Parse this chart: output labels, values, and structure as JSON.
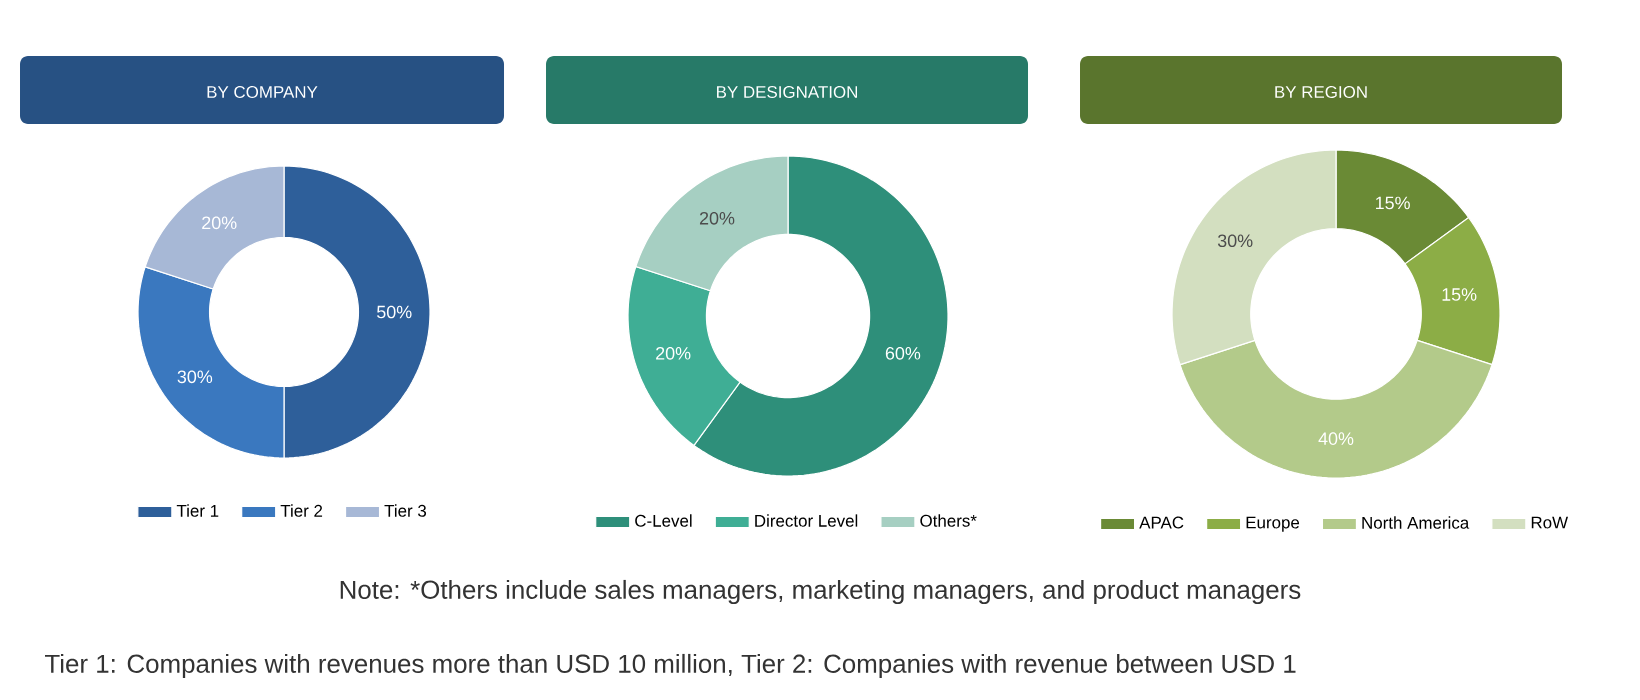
{
  "chart_data": [
    {
      "type": "donut",
      "title": "BY COMPANY",
      "categories": [
        "Tier 1",
        "Tier 2",
        "Tier 3"
      ],
      "values": [
        50,
        30,
        20
      ],
      "value_labels": [
        "50%",
        "30%",
        "20%"
      ],
      "colors": [
        "#2e5f9a",
        "#3a78bf",
        "#a7b8d6"
      ],
      "legend": "bottom",
      "annotations": [
        "Note: *Others include sales managers, marketing managers, and product managers",
        "Tier 1: Companies with revenues more than USD 10 million, Tier 2: Companies with revenue between USD 1"
      ]
    },
    {
      "type": "donut",
      "title": "BY DESIGNATION",
      "categories": [
        "C-Level",
        "Director Level",
        "Others*"
      ],
      "values": [
        60,
        20,
        20
      ],
      "value_labels": [
        "60%",
        "20%",
        "20%"
      ],
      "colors": [
        "#2e8f7a",
        "#3fae95",
        "#a6cfc2"
      ],
      "legend": "bottom"
    },
    {
      "type": "donut",
      "title": "BY REGION",
      "categories": [
        "APAC",
        "Europe",
        "North America",
        "RoW"
      ],
      "values": [
        15,
        15,
        40,
        30
      ],
      "value_labels": [
        "15%",
        "15%",
        "40%",
        "30%"
      ],
      "colors": [
        "#6a8a35",
        "#8cad46",
        "#b3ca8a",
        "#d3dfc0"
      ],
      "legend": "bottom"
    }
  ]
}
